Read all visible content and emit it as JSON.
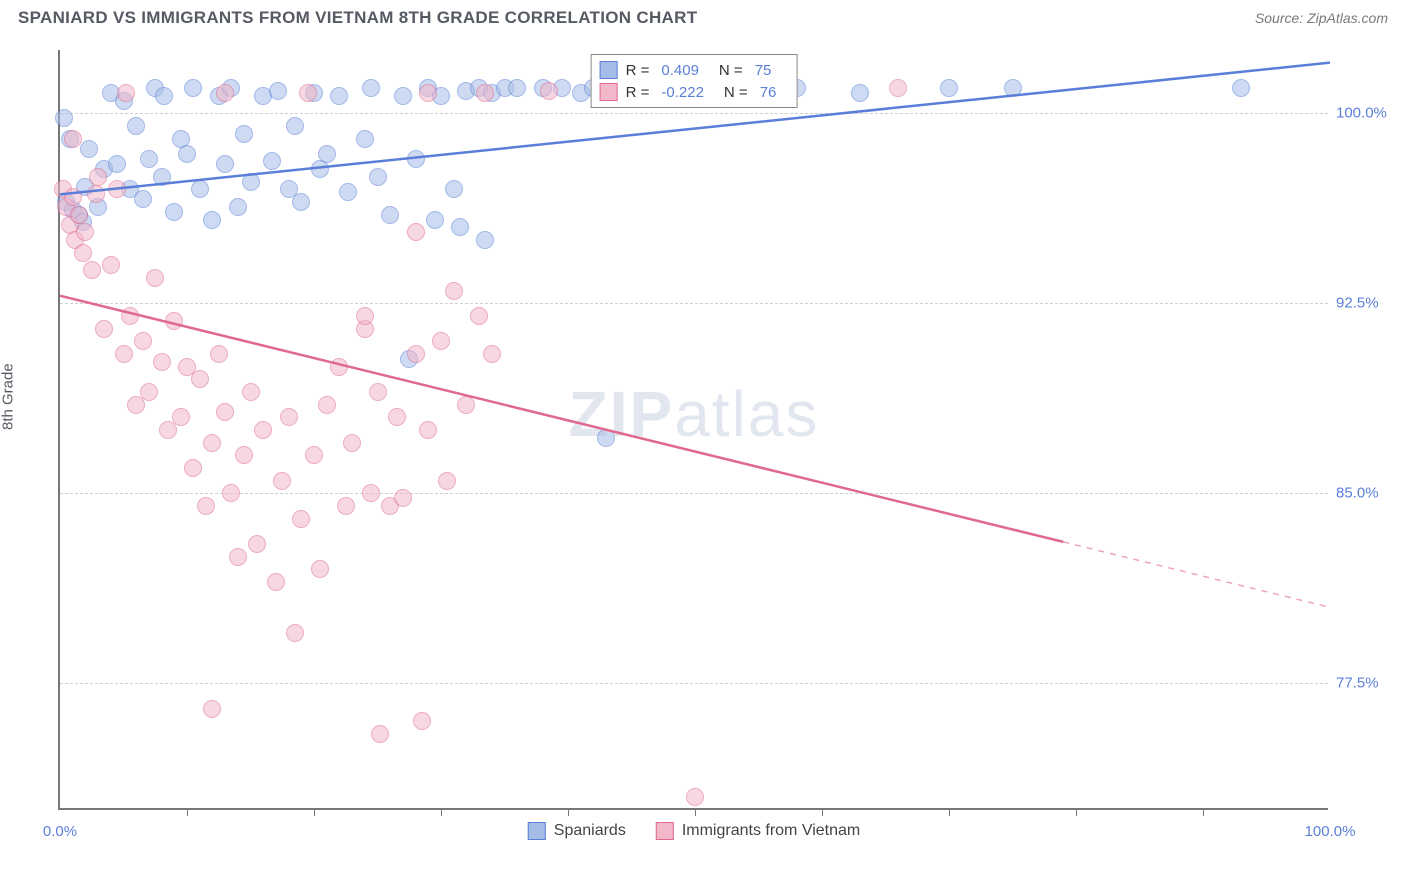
{
  "title": "SPANIARD VS IMMIGRANTS FROM VIETNAM 8TH GRADE CORRELATION CHART",
  "source": "Source: ZipAtlas.com",
  "watermark_bold": "ZIP",
  "watermark_light": "atlas",
  "chart": {
    "type": "scatter",
    "ylabel": "8th Grade",
    "xlim": [
      0,
      100
    ],
    "ylim": [
      72.5,
      102.5
    ],
    "yticks": [
      77.5,
      85.0,
      92.5,
      100.0
    ],
    "ytick_labels": [
      "77.5%",
      "85.0%",
      "92.5%",
      "100.0%"
    ],
    "x_minor_ticks": [
      10,
      20,
      30,
      40,
      50,
      60,
      70,
      80,
      90
    ],
    "xtick_labels": {
      "0": "0.0%",
      "100": "100.0%"
    },
    "grid_color": "#cfcfcf",
    "axis_color": "#777777",
    "tick_label_color": "#5b7fd9",
    "background_color": "#ffffff",
    "marker_radius": 9,
    "marker_opacity": 0.55,
    "series": [
      {
        "name": "Spaniards",
        "color": "#6f93d6",
        "fill": "#a5bde6",
        "stroke": "#5b7fd9",
        "R": "0.409",
        "N": "75",
        "trend": {
          "x1": 0,
          "y1": 96.8,
          "x2": 100,
          "y2": 102.0,
          "solid_to_x": 100
        },
        "points": [
          [
            0.5,
            96.5
          ],
          [
            1,
            96.2
          ],
          [
            1.5,
            96.0
          ],
          [
            1.8,
            95.7
          ],
          [
            0.8,
            99.0
          ],
          [
            0.3,
            99.8
          ],
          [
            2,
            97.1
          ],
          [
            2.3,
            98.6
          ],
          [
            3,
            96.3
          ],
          [
            3.5,
            97.8
          ],
          [
            4,
            100.8
          ],
          [
            4.5,
            98.0
          ],
          [
            5,
            100.5
          ],
          [
            5.5,
            97.0
          ],
          [
            6,
            99.5
          ],
          [
            6.5,
            96.6
          ],
          [
            7,
            98.2
          ],
          [
            7.5,
            101.0
          ],
          [
            8,
            97.5
          ],
          [
            8.2,
            100.7
          ],
          [
            9,
            96.1
          ],
          [
            9.5,
            99.0
          ],
          [
            10,
            98.4
          ],
          [
            10.5,
            101.0
          ],
          [
            11,
            97.0
          ],
          [
            12,
            95.8
          ],
          [
            12.5,
            100.7
          ],
          [
            13,
            98.0
          ],
          [
            13.5,
            101.0
          ],
          [
            14,
            96.3
          ],
          [
            14.5,
            99.2
          ],
          [
            15,
            97.3
          ],
          [
            16,
            100.7
          ],
          [
            16.7,
            98.1
          ],
          [
            17.2,
            100.9
          ],
          [
            18,
            97.0
          ],
          [
            18.5,
            99.5
          ],
          [
            19,
            96.5
          ],
          [
            20,
            100.8
          ],
          [
            20.5,
            97.8
          ],
          [
            21,
            98.4
          ],
          [
            22,
            100.7
          ],
          [
            22.7,
            96.9
          ],
          [
            24,
            99.0
          ],
          [
            24.5,
            101.0
          ],
          [
            25,
            97.5
          ],
          [
            26,
            96.0
          ],
          [
            27,
            100.7
          ],
          [
            27.5,
            90.3
          ],
          [
            28,
            98.2
          ],
          [
            29,
            101.0
          ],
          [
            29.5,
            95.8
          ],
          [
            30,
            100.7
          ],
          [
            31,
            97.0
          ],
          [
            31.5,
            95.5
          ],
          [
            32,
            100.9
          ],
          [
            33,
            101.0
          ],
          [
            33.5,
            95.0
          ],
          [
            34,
            100.8
          ],
          [
            35,
            101.0
          ],
          [
            36,
            101.0
          ],
          [
            38,
            101.0
          ],
          [
            39.5,
            101.0
          ],
          [
            41,
            100.8
          ],
          [
            42,
            101.0
          ],
          [
            43,
            87.2
          ],
          [
            45,
            100.8
          ],
          [
            48,
            101.0
          ],
          [
            52,
            101.0
          ],
          [
            55,
            101.0
          ],
          [
            58,
            101.0
          ],
          [
            63,
            100.8
          ],
          [
            70,
            101.0
          ],
          [
            75,
            101.0
          ],
          [
            93,
            101.0
          ]
        ]
      },
      {
        "name": "Immigrants from Vietnam",
        "color": "#e589a6",
        "fill": "#f2b7c9",
        "stroke": "#e06a8f",
        "R": "-0.222",
        "N": "76",
        "trend": {
          "x1": 0,
          "y1": 92.8,
          "x2": 100,
          "y2": 80.5,
          "solid_to_x": 79
        },
        "points": [
          [
            0.2,
            97.0
          ],
          [
            0.5,
            96.3
          ],
          [
            0.8,
            95.6
          ],
          [
            1,
            96.7
          ],
          [
            1.2,
            95.0
          ],
          [
            1.5,
            96.0
          ],
          [
            1.0,
            99.0
          ],
          [
            1.8,
            94.5
          ],
          [
            2,
            95.3
          ],
          [
            2.5,
            93.8
          ],
          [
            3,
            97.5
          ],
          [
            3.5,
            91.5
          ],
          [
            4,
            94.0
          ],
          [
            4.5,
            97.0
          ],
          [
            5,
            90.5
          ],
          [
            5.5,
            92.0
          ],
          [
            5.2,
            100.8
          ],
          [
            6,
            88.5
          ],
          [
            6.5,
            91.0
          ],
          [
            7,
            89.0
          ],
          [
            7.5,
            93.5
          ],
          [
            8,
            90.2
          ],
          [
            8.5,
            87.5
          ],
          [
            9,
            91.8
          ],
          [
            9.5,
            88.0
          ],
          [
            10,
            90.0
          ],
          [
            10.5,
            86.0
          ],
          [
            11,
            89.5
          ],
          [
            11.5,
            84.5
          ],
          [
            12,
            87.0
          ],
          [
            12.5,
            90.5
          ],
          [
            12.0,
            76.5
          ],
          [
            13,
            88.2
          ],
          [
            13.5,
            85.0
          ],
          [
            14,
            82.5
          ],
          [
            14.5,
            86.5
          ],
          [
            15,
            89.0
          ],
          [
            15.5,
            83.0
          ],
          [
            16,
            87.5
          ],
          [
            17,
            81.5
          ],
          [
            17.5,
            85.5
          ],
          [
            18,
            88.0
          ],
          [
            18.5,
            79.5
          ],
          [
            19,
            84.0
          ],
          [
            13,
            100.8
          ],
          [
            20,
            86.5
          ],
          [
            20.5,
            82.0
          ],
          [
            21,
            88.5
          ],
          [
            22,
            90.0
          ],
          [
            22.5,
            84.5
          ],
          [
            23,
            87.0
          ],
          [
            24,
            91.5
          ],
          [
            24.5,
            85.0
          ],
          [
            25,
            89.0
          ],
          [
            25.2,
            75.5
          ],
          [
            26,
            84.5
          ],
          [
            26.5,
            88.0
          ],
          [
            27,
            84.8
          ],
          [
            28,
            90.5
          ],
          [
            28.5,
            76.0
          ],
          [
            29,
            87.5
          ],
          [
            30,
            91.0
          ],
          [
            30.5,
            85.5
          ],
          [
            31,
            93.0
          ],
          [
            32,
            88.5
          ],
          [
            33,
            92.0
          ],
          [
            19.5,
            100.8
          ],
          [
            29,
            100.8
          ],
          [
            33.5,
            100.8
          ],
          [
            28,
            95.3
          ],
          [
            50,
            73.0
          ],
          [
            38.5,
            100.9
          ],
          [
            66,
            101.0
          ],
          [
            24,
            92.0
          ],
          [
            34,
            90.5
          ],
          [
            2.8,
            96.8
          ]
        ]
      }
    ]
  }
}
